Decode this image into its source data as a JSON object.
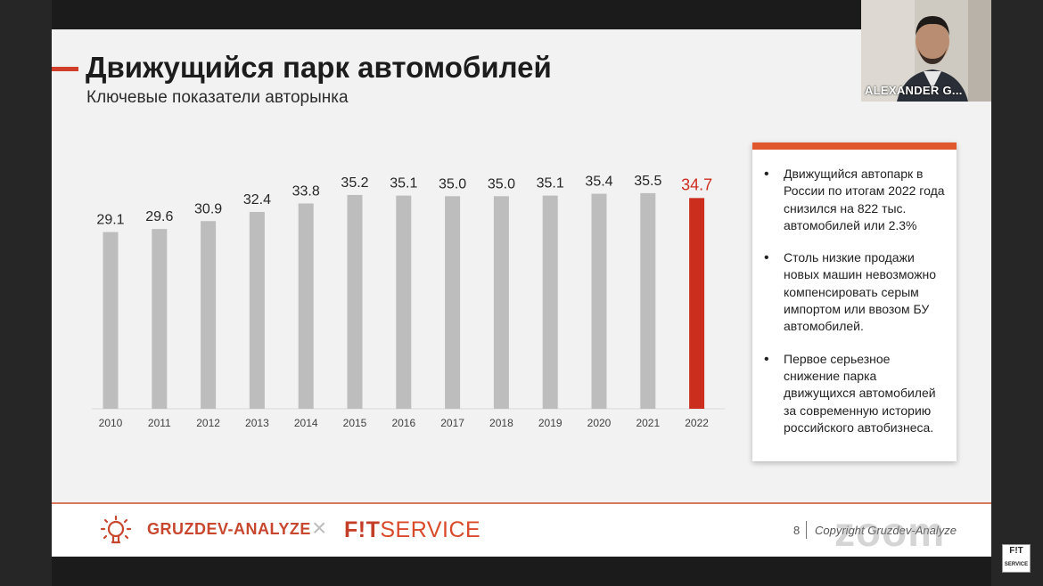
{
  "slide": {
    "title": "Движущийся парк автомобилей",
    "subtitle": "Ключевые показатели авторынка"
  },
  "colors": {
    "bar_default": "#bdbdbd",
    "bar_highlight": "#cc2e1e",
    "accent": "#e0572d"
  },
  "chart_data": {
    "type": "bar",
    "categories": [
      "2010",
      "2011",
      "2012",
      "2013",
      "2014",
      "2015",
      "2016",
      "2017",
      "2018",
      "2019",
      "2020",
      "2021",
      "2022"
    ],
    "values": [
      29.1,
      29.6,
      30.9,
      32.4,
      33.8,
      35.2,
      35.1,
      35.0,
      35.0,
      35.1,
      35.4,
      35.5,
      34.7
    ],
    "value_labels": [
      "29.1",
      "29.6",
      "30.9",
      "32.4",
      "33.8",
      "35.2",
      "35.1",
      "35.0",
      "35.0",
      "35.1",
      "35.4",
      "35.5",
      "34.7"
    ],
    "highlight_index": 12,
    "title": "",
    "xlabel": "",
    "ylabel": "",
    "grid": false,
    "legend": false
  },
  "notes": {
    "items": [
      "Движущийся автопарк в России по итогам 2022 года снизился на 822 тыс. автомобилей или 2.3%",
      "Столь низкие продажи новых машин невозможно компенсировать серым импортом или ввозом БУ автомобилей.",
      "Первое серьезное снижение парка движущихся автомобилей за современную историю российского автобизнеса."
    ]
  },
  "footer": {
    "logo1": "GRUZDEV-ANALYZE",
    "separator": "×",
    "logo2_prefix": "F!T",
    "logo2_suffix": "SERVICE",
    "page_number": "8",
    "copyright": "Copyright Gruzdev-Analyze"
  },
  "video": {
    "participant_name": "ALEXANDER G..."
  },
  "watermark": {
    "text": "zoom"
  },
  "badge": {
    "line1": "F!T",
    "line2": "SERVICE"
  }
}
